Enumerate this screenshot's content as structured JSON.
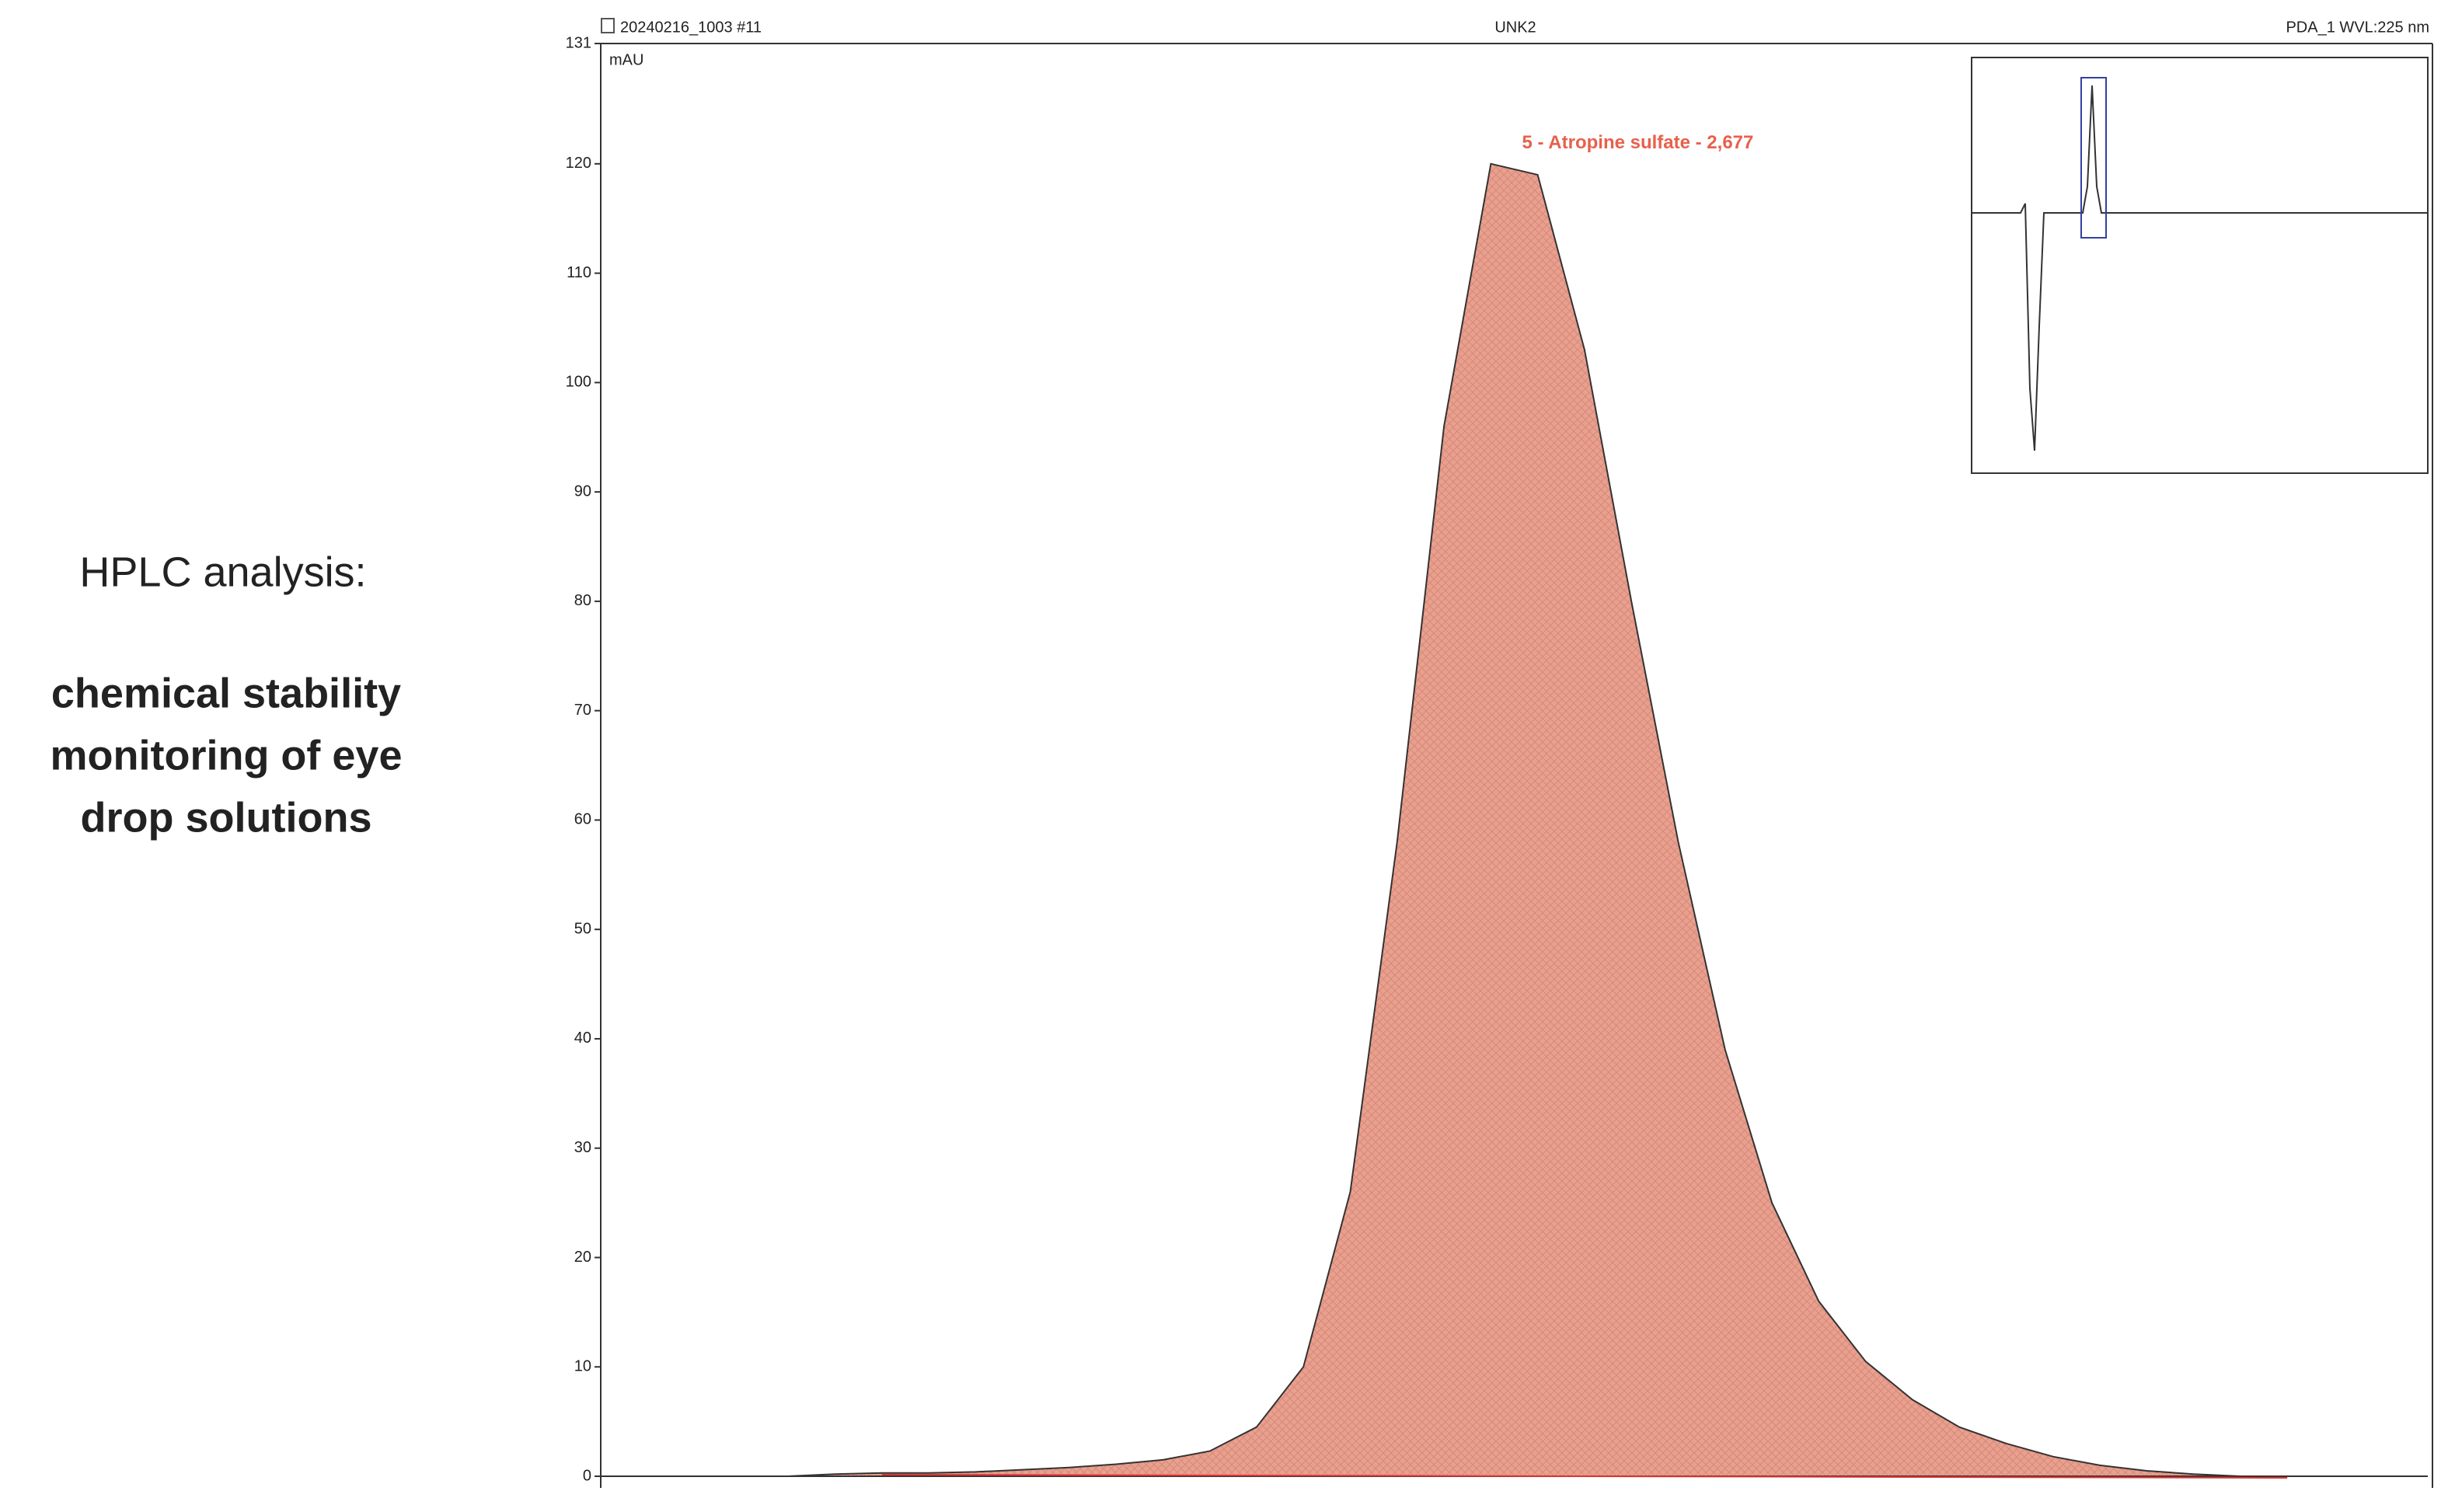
{
  "caption": {
    "heading": "HPLC analysis:",
    "lines": [
      "chemical stability",
      "monitoring of eye",
      "drop solutions"
    ]
  },
  "chart_data": {
    "type": "area",
    "sample": "20240216_1003 #11",
    "title": "UNK2",
    "channel": "PDA_1 WVL:225 nm",
    "y_label": "mAU",
    "annotation": "5 - Atropine sulfate - 2,677",
    "color": "#e9a08f",
    "line_color": "#333333",
    "label_color": "#e8604c",
    "values": [
      0,
      0,
      0,
      0,
      0,
      0.2,
      0.3,
      0.3,
      0.4,
      0.6,
      0.8,
      1.1,
      1.5,
      2.3,
      4.5,
      10,
      26,
      58,
      96,
      120,
      119,
      103,
      80,
      58,
      39,
      25,
      16,
      10.5,
      7,
      4.5,
      3,
      1.8,
      1,
      0.5,
      0.2,
      0,
      0,
      0,
      0,
      0
    ],
    "ylim": [
      0,
      131
    ],
    "yticks": [
      0,
      10,
      20,
      30,
      40,
      50,
      60,
      70,
      80,
      90,
      100,
      110,
      120,
      131
    ]
  }
}
